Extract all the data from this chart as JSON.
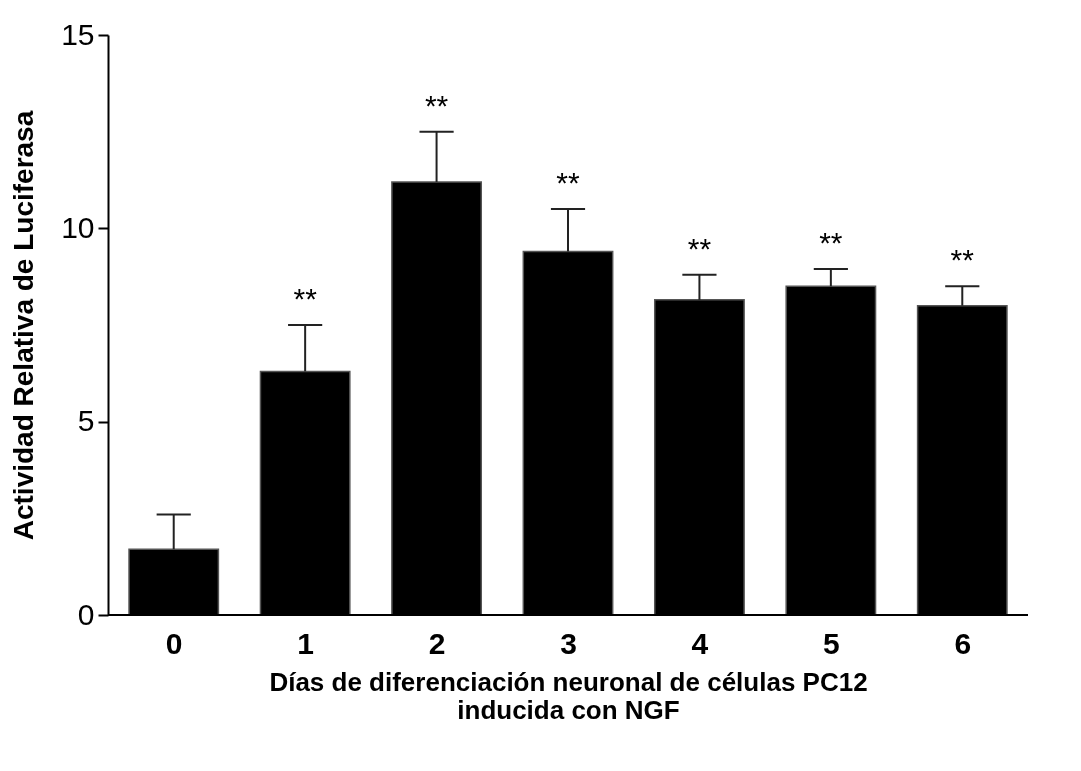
{
  "chart_data": {
    "type": "bar",
    "xlabel": "Días de diferenciación neuronal de células PC12\ninducida con NGF",
    "ylabel": "Actividad Relativa de Luciferasa",
    "categories": [
      "0",
      "1",
      "2",
      "3",
      "4",
      "5",
      "6"
    ],
    "values": [
      1.7,
      6.3,
      11.2,
      9.4,
      8.15,
      8.5,
      8.0
    ],
    "errors": [
      [
        1.7,
        2.6
      ],
      [
        6.3,
        7.5
      ],
      [
        11.2,
        12.5
      ],
      [
        9.4,
        10.5
      ],
      [
        8.15,
        8.8
      ],
      [
        8.5,
        8.95
      ],
      [
        8.0,
        8.5
      ]
    ],
    "color": "#000000",
    "ylim": [
      0,
      15
    ],
    "yticks": [
      0,
      5,
      10,
      15
    ],
    "grid": false,
    "annotations": [
      {
        "text": "**",
        "x": "1",
        "y": 7.5
      },
      {
        "text": "**",
        "x": "2",
        "y": 12.5
      },
      {
        "text": "**",
        "x": "3",
        "y": 10.5
      },
      {
        "text": "**",
        "x": "4",
        "y": 8.8
      },
      {
        "text": "**",
        "x": "5",
        "y": 8.95
      },
      {
        "text": "**",
        "x": "6",
        "y": 8.5
      }
    ]
  }
}
